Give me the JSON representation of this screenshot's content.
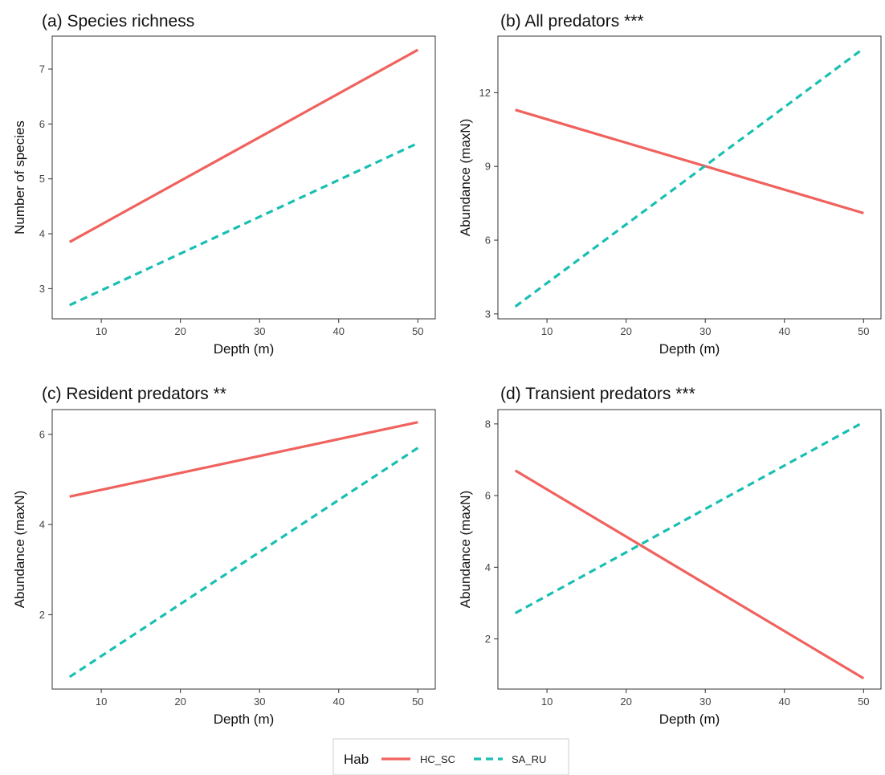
{
  "colors": {
    "HC_SC": "#f0625e",
    "SA_RU": "#19bfb2"
  },
  "legend": {
    "title": "Hab",
    "entries": [
      {
        "label": "HC_SC",
        "color": "#f0625e",
        "linetype": "solid"
      },
      {
        "label": "SA_RU",
        "color": "#19bfb2",
        "linetype": "dashed"
      }
    ]
  },
  "chart_data": [
    {
      "type": "line",
      "title": "(a) Species richness",
      "xlabel": "Depth (m)",
      "ylabel": "Number of species",
      "xlim": [
        3.8,
        52.2
      ],
      "ylim": [
        2.45,
        7.6
      ],
      "xticks": [
        10,
        20,
        30,
        40,
        50
      ],
      "yticks": [
        3,
        4,
        5,
        6,
        7
      ],
      "grid": false,
      "series": [
        {
          "name": "HC_SC",
          "x": [
            6,
            50
          ],
          "y": [
            3.85,
            7.35
          ]
        },
        {
          "name": "SA_RU",
          "x": [
            6,
            50
          ],
          "y": [
            2.7,
            5.65
          ]
        }
      ]
    },
    {
      "type": "line",
      "title": "(b) All predators ***",
      "xlabel": "Depth (m)",
      "ylabel": "Abundance (maxN)",
      "xlim": [
        3.8,
        52.2
      ],
      "ylim": [
        2.8,
        14.3
      ],
      "xticks": [
        10,
        20,
        30,
        40,
        50
      ],
      "yticks": [
        3,
        6,
        9,
        12
      ],
      "grid": false,
      "series": [
        {
          "name": "HC_SC",
          "x": [
            6,
            50
          ],
          "y": [
            11.3,
            7.1
          ]
        },
        {
          "name": "SA_RU",
          "x": [
            6,
            50
          ],
          "y": [
            3.3,
            13.8
          ]
        }
      ]
    },
    {
      "type": "line",
      "title": "(c) Resident predators **",
      "xlabel": "Depth (m)",
      "ylabel": "Abundance (maxN)",
      "xlim": [
        3.8,
        52.2
      ],
      "ylim": [
        0.35,
        6.55
      ],
      "xticks": [
        10,
        20,
        30,
        40,
        50
      ],
      "yticks": [
        2,
        4,
        6
      ],
      "grid": false,
      "series": [
        {
          "name": "HC_SC",
          "x": [
            6,
            50
          ],
          "y": [
            4.62,
            6.27
          ]
        },
        {
          "name": "SA_RU",
          "x": [
            6,
            50
          ],
          "y": [
            0.62,
            5.7
          ]
        }
      ]
    },
    {
      "type": "line",
      "title": "(d) Transient predators ***",
      "xlabel": "Depth (m)",
      "ylabel": "Abundance (maxN)",
      "xlim": [
        3.8,
        52.2
      ],
      "ylim": [
        0.6,
        8.4
      ],
      "xticks": [
        10,
        20,
        30,
        40,
        50
      ],
      "yticks": [
        2,
        4,
        6,
        8
      ],
      "grid": false,
      "series": [
        {
          "name": "HC_SC",
          "x": [
            6,
            50
          ],
          "y": [
            6.7,
            0.9
          ]
        },
        {
          "name": "SA_RU",
          "x": [
            6,
            50
          ],
          "y": [
            2.72,
            8.05
          ]
        }
      ]
    }
  ]
}
